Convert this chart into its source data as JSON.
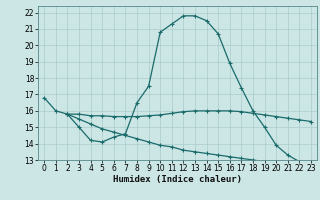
{
  "title": "",
  "xlabel": "Humidex (Indice chaleur)",
  "bg_color": "#cce5e5",
  "grid_color": "#aacccc",
  "line_color": "#1a6b6b",
  "xlim": [
    -0.5,
    23.5
  ],
  "ylim": [
    13,
    22.4
  ],
  "xticks": [
    0,
    1,
    2,
    3,
    4,
    5,
    6,
    7,
    8,
    9,
    10,
    11,
    12,
    13,
    14,
    15,
    16,
    17,
    18,
    19,
    20,
    21,
    22,
    23
  ],
  "yticks": [
    13,
    14,
    15,
    16,
    17,
    18,
    19,
    20,
    21,
    22
  ],
  "line1_x": [
    0,
    1,
    2,
    3,
    4,
    5,
    6,
    7,
    8,
    9,
    10,
    11,
    12,
    13,
    14,
    15,
    16,
    17,
    18,
    19,
    20,
    21,
    22,
    23
  ],
  "line1_y": [
    16.8,
    16.0,
    15.8,
    15.0,
    14.2,
    14.1,
    14.4,
    14.6,
    16.5,
    17.5,
    20.8,
    21.3,
    21.8,
    21.8,
    21.5,
    20.7,
    18.9,
    17.4,
    16.0,
    15.0,
    13.9,
    13.3,
    12.9,
    12.9
  ],
  "line2_x": [
    2,
    3,
    4,
    5,
    6,
    7,
    8,
    9,
    10,
    11,
    12,
    13,
    14,
    15,
    16,
    17,
    18,
    19,
    20,
    21,
    22,
    23
  ],
  "line2_y": [
    15.8,
    15.8,
    15.7,
    15.7,
    15.65,
    15.65,
    15.65,
    15.7,
    15.75,
    15.85,
    15.95,
    16.0,
    16.0,
    16.0,
    16.0,
    15.95,
    15.85,
    15.75,
    15.65,
    15.55,
    15.45,
    15.35
  ],
  "line3_x": [
    2,
    3,
    4,
    5,
    6,
    7,
    8,
    9,
    10,
    11,
    12,
    13,
    14,
    15,
    16,
    17,
    18,
    19,
    20,
    21,
    22,
    23
  ],
  "line3_y": [
    15.8,
    15.5,
    15.2,
    14.9,
    14.7,
    14.5,
    14.3,
    14.1,
    13.9,
    13.8,
    13.6,
    13.5,
    13.4,
    13.3,
    13.2,
    13.1,
    13.0,
    12.9,
    12.85,
    12.8,
    12.75,
    12.7
  ],
  "xlabel_fontsize": 6.5,
  "tick_fontsize": 5.5,
  "linewidth": 0.9,
  "markersize": 2.5
}
